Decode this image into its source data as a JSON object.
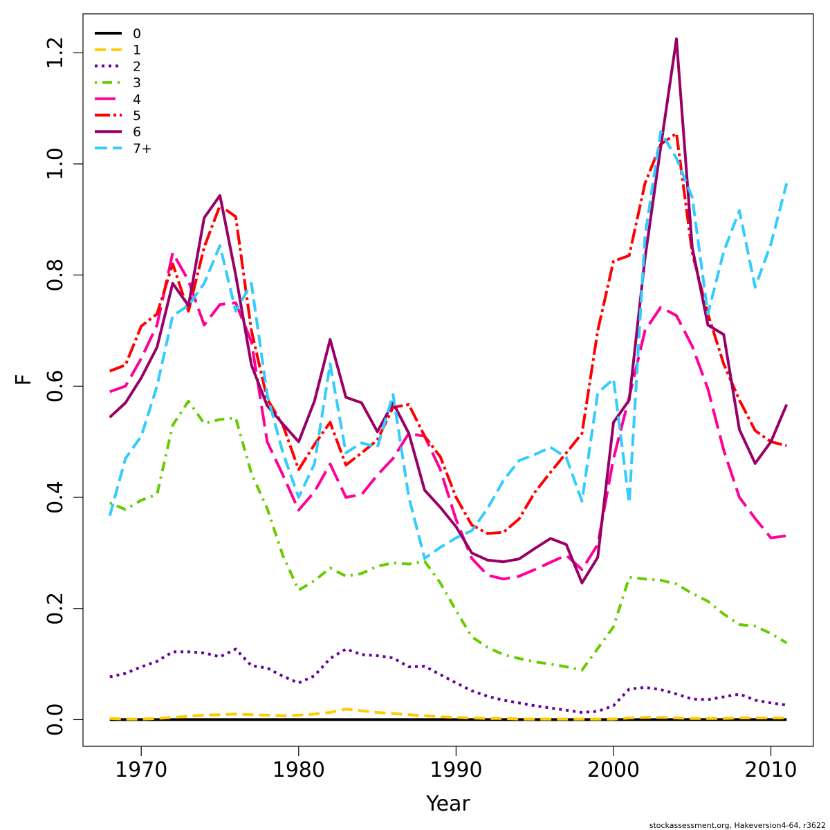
{
  "footer_text": "stockassessment.org, Hakeversion4-64, r3622",
  "chart_data": {
    "type": "line",
    "title": "",
    "xlabel": "Year",
    "ylabel": "F",
    "xlim": [
      1966.3,
      2012.7
    ],
    "ylim": [
      -0.048,
      1.27
    ],
    "x_ticks": [
      1970,
      1980,
      1990,
      2000,
      2010
    ],
    "y_ticks": [
      0.0,
      0.2,
      0.4,
      0.6,
      0.8,
      1.0,
      1.2
    ],
    "x_tick_labels": [
      "1970",
      "1980",
      "1990",
      "2000",
      "2010"
    ],
    "y_tick_labels": [
      "0.0",
      "0.2",
      "0.4",
      "0.6",
      "0.8",
      "1.0",
      "1.2"
    ],
    "grid": false,
    "legend_position": "top-left",
    "x": [
      1968,
      1969,
      1970,
      1971,
      1972,
      1973,
      1974,
      1975,
      1976,
      1977,
      1978,
      1979,
      1980,
      1981,
      1982,
      1983,
      1984,
      1985,
      1986,
      1987,
      1988,
      1989,
      1990,
      1991,
      1992,
      1993,
      1994,
      1995,
      1996,
      1997,
      1998,
      1999,
      2000,
      2001,
      2002,
      2003,
      2004,
      2005,
      2006,
      2007,
      2008,
      2009,
      2010,
      2011
    ],
    "series": [
      {
        "name": "0",
        "color": "#000000",
        "dash": "",
        "values": [
          0,
          0,
          0,
          0,
          0,
          0,
          0,
          0,
          0,
          0,
          0,
          0,
          0,
          0,
          0,
          0,
          0,
          0,
          0,
          0,
          0,
          0,
          0,
          0,
          0,
          0,
          0,
          0,
          0,
          0,
          0,
          0,
          0,
          0,
          0,
          0,
          0,
          0,
          0,
          0,
          0,
          0,
          0,
          0
        ]
      },
      {
        "name": "1",
        "color": "#FFCC00",
        "dash": "16,8",
        "values": [
          0.002,
          0.001,
          0.001,
          0.002,
          0.004,
          0.006,
          0.008,
          0.009,
          0.01,
          0.009,
          0.008,
          0.007,
          0.008,
          0.01,
          0.013,
          0.019,
          0.016,
          0.013,
          0.011,
          0.009,
          0.007,
          0.005,
          0.004,
          0.003,
          0.002,
          0.002,
          0.001,
          0.001,
          0.001,
          0.001,
          0.001,
          0.001,
          0.001,
          0.003,
          0.004,
          0.004,
          0.003,
          0.002,
          0.002,
          0.002,
          0.003,
          0.003,
          0.003,
          0.003
        ]
      },
      {
        "name": "2",
        "color": "#660099",
        "dash": "4,6",
        "values": [
          0.077,
          0.083,
          0.095,
          0.105,
          0.122,
          0.122,
          0.12,
          0.113,
          0.127,
          0.097,
          0.093,
          0.078,
          0.066,
          0.079,
          0.11,
          0.127,
          0.117,
          0.115,
          0.111,
          0.095,
          0.096,
          0.081,
          0.066,
          0.052,
          0.042,
          0.035,
          0.03,
          0.025,
          0.021,
          0.017,
          0.013,
          0.015,
          0.025,
          0.055,
          0.058,
          0.054,
          0.046,
          0.037,
          0.036,
          0.041,
          0.046,
          0.035,
          0.03,
          0.026
        ]
      },
      {
        "name": "3",
        "color": "#66CC00",
        "dash": "3,8,14,8",
        "values": [
          0.39,
          0.378,
          0.395,
          0.405,
          0.53,
          0.573,
          0.533,
          0.54,
          0.543,
          0.443,
          0.38,
          0.295,
          0.233,
          0.25,
          0.273,
          0.258,
          0.263,
          0.276,
          0.282,
          0.28,
          0.285,
          0.246,
          0.196,
          0.149,
          0.13,
          0.117,
          0.11,
          0.104,
          0.1,
          0.095,
          0.089,
          0.128,
          0.167,
          0.256,
          0.253,
          0.251,
          0.244,
          0.227,
          0.213,
          0.19,
          0.171,
          0.168,
          0.155,
          0.138
        ]
      },
      {
        "name": "4",
        "color": "#FF0099",
        "dash": "30,10",
        "values": [
          0.59,
          0.6,
          0.65,
          0.71,
          0.84,
          0.79,
          0.71,
          0.747,
          0.75,
          0.68,
          0.5,
          0.44,
          0.377,
          0.41,
          0.46,
          0.4,
          0.405,
          0.44,
          0.47,
          0.515,
          0.51,
          0.45,
          0.36,
          0.29,
          0.26,
          0.253,
          0.258,
          0.27,
          0.283,
          0.296,
          0.27,
          0.315,
          0.47,
          0.58,
          0.7,
          0.742,
          0.727,
          0.672,
          0.595,
          0.485,
          0.4,
          0.362,
          0.327,
          0.331
        ]
      },
      {
        "name": "5",
        "color": "#FF0000",
        "dash": "22,5,4,5",
        "values": [
          0.627,
          0.638,
          0.708,
          0.73,
          0.82,
          0.735,
          0.85,
          0.925,
          0.905,
          0.7,
          0.577,
          0.53,
          0.45,
          0.495,
          0.535,
          0.458,
          0.48,
          0.503,
          0.562,
          0.567,
          0.51,
          0.473,
          0.4,
          0.35,
          0.335,
          0.337,
          0.361,
          0.409,
          0.445,
          0.48,
          0.515,
          0.7,
          0.825,
          0.835,
          0.965,
          1.035,
          1.055,
          0.84,
          0.73,
          0.64,
          0.575,
          0.52,
          0.5,
          0.493
        ]
      },
      {
        "name": "6",
        "color": "#990066",
        "dash": "",
        "values": [
          0.544,
          0.57,
          0.615,
          0.67,
          0.785,
          0.745,
          0.903,
          0.943,
          0.8,
          0.638,
          0.565,
          0.532,
          0.5,
          0.573,
          0.684,
          0.58,
          0.57,
          0.518,
          0.57,
          0.515,
          0.413,
          0.382,
          0.347,
          0.3,
          0.287,
          0.284,
          0.289,
          0.308,
          0.326,
          0.315,
          0.246,
          0.292,
          0.535,
          0.575,
          0.83,
          1.03,
          1.225,
          0.85,
          0.71,
          0.693,
          0.522,
          0.461,
          0.5,
          0.567
        ]
      },
      {
        "name": "7+",
        "color": "#33CCFF",
        "dash": "18,8",
        "values": [
          0.367,
          0.47,
          0.51,
          0.6,
          0.727,
          0.745,
          0.785,
          0.853,
          0.735,
          0.785,
          0.585,
          0.48,
          0.4,
          0.46,
          0.64,
          0.48,
          0.498,
          0.49,
          0.585,
          0.4,
          0.29,
          0.31,
          0.327,
          0.34,
          0.38,
          0.43,
          0.466,
          0.477,
          0.49,
          0.472,
          0.393,
          0.588,
          0.613,
          0.39,
          0.87,
          1.058,
          1.01,
          0.94,
          0.73,
          0.842,
          0.916,
          0.778,
          0.856,
          0.965
        ]
      }
    ]
  }
}
